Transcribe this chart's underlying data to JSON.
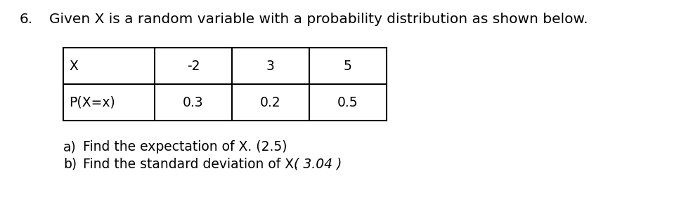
{
  "title_number": "6.",
  "title_text": "Given X is a random variable with a probability distribution as shown below.",
  "table_headers": [
    "X",
    "-2",
    "3",
    "5"
  ],
  "table_row2": [
    "P(X=x)",
    "0.3",
    "0.2",
    "0.5"
  ],
  "question_a_label": "a)",
  "question_a_text": "Find the expectation of X. (2.5)",
  "question_b_label": "b)",
  "question_b_text": "Find the standard deviation of X.",
  "question_b_answer": "( 3.04 )",
  "bg_color": "#ffffff",
  "text_color": "#000000",
  "font_size_title": 14.5,
  "font_size_table": 13.5,
  "font_size_questions": 13.5
}
